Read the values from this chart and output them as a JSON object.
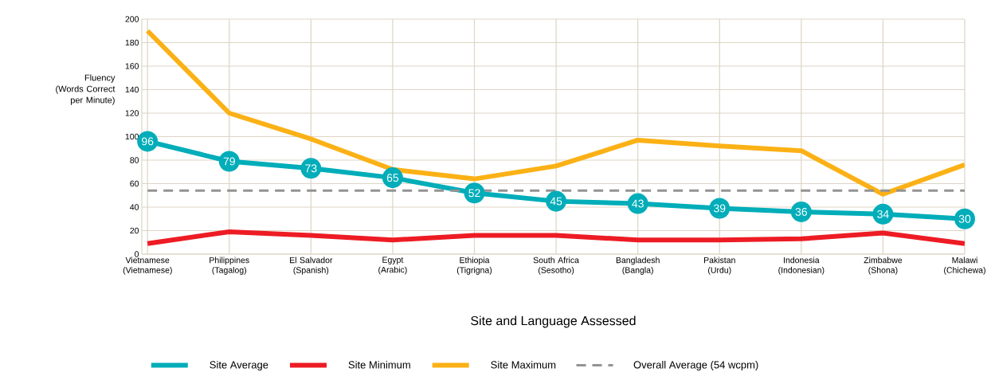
{
  "chart_data": {
    "type": "line",
    "xlabel": "Site and Language Assessed",
    "ylabel": "Fluency (Words Correct per Minute)",
    "categories": [
      "Vietnamese (Vietnamese)",
      "Philippines (Tagalog)",
      "El Salvador (Spanish)",
      "Egypt (Arabic)",
      "Ethiopia (Tigrigna)",
      "South Africa (Sesotho)",
      "Bangladesh (Bangla)",
      "Pakistan (Urdu)",
      "Indonesia (Indonesian)",
      "Zimbabwe (Shona)",
      "Malawi (Chichewa)"
    ],
    "series": [
      {
        "name": "Site Average",
        "color": "#00adb9",
        "marker": "circle",
        "values": [
          96,
          79,
          73,
          65,
          52,
          45,
          43,
          39,
          36,
          34,
          30
        ],
        "value_labels": [
          "96",
          "79",
          "73",
          "65",
          "52",
          "45",
          "43",
          "39",
          "36",
          "34",
          "30"
        ]
      },
      {
        "name": "Site Minimum",
        "color": "#ed1c24",
        "values": [
          9,
          19,
          16,
          12,
          16,
          16,
          12,
          12,
          13,
          18,
          9
        ]
      },
      {
        "name": "Site Maximum",
        "color": "#fbb116",
        "values": [
          190,
          120,
          98,
          72,
          64,
          75,
          97,
          92,
          88,
          51,
          76
        ]
      }
    ],
    "ref_lines": [
      {
        "axis": "y",
        "value": 54,
        "label": "Overall Average (54 wcpm)",
        "color": "#939393",
        "line_style": "dashed"
      }
    ],
    "ylim": [
      0,
      200
    ],
    "yticks": [
      0,
      20,
      40,
      60,
      80,
      100,
      120,
      140,
      160,
      180,
      200
    ],
    "grid": true,
    "legend": "bottom",
    "line_style": "solid"
  }
}
